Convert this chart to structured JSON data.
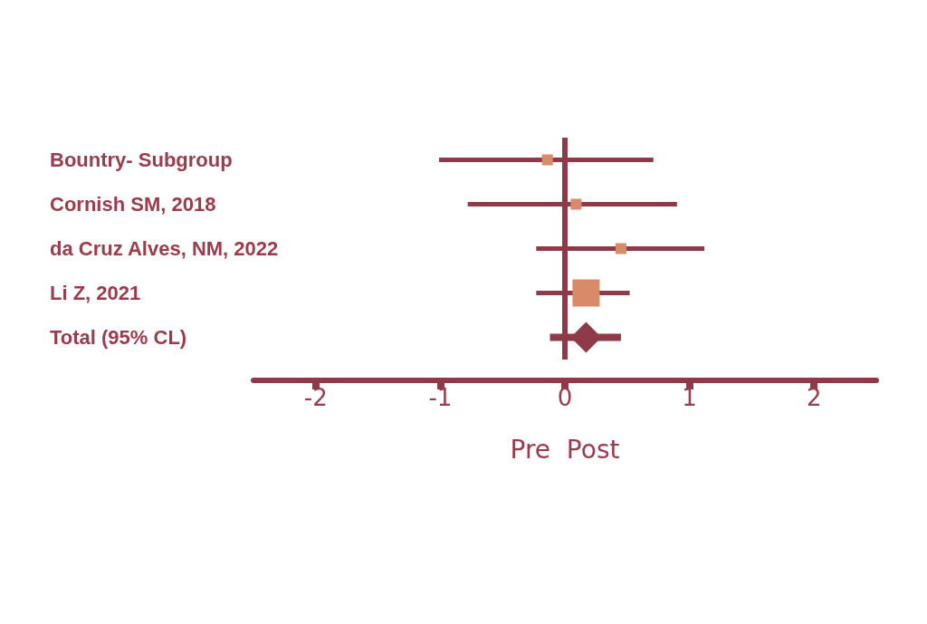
{
  "chart_data": {
    "type": "bubble",
    "orientation": "horizontal",
    "marker": "square",
    "grid": false,
    "categories": [
      "Bountry- Subgroup",
      "Cornish SM, 2018",
      "da Cruz Alves, NM, 2022",
      "Li Z, 2021",
      "Total (95% CL)"
    ],
    "xlabel": "Pre  Post",
    "xlim": [
      -2.5,
      2.5
    ],
    "xticks": [
      -2,
      -1,
      0,
      1,
      2
    ],
    "ref_lines": [
      {
        "axis": "x",
        "value": 0,
        "color": "#8e3a48"
      }
    ],
    "series": [
      {
        "color": "#d98b69",
        "values": [
          -0.14,
          0.09,
          0.45,
          0.17,
          null
        ],
        "sizes": [
          0.16,
          0.16,
          0.16,
          1,
          null
        ],
        "errors": [
          [
            -1.01,
            0.71
          ],
          [
            -0.78,
            0.9
          ],
          [
            -0.23,
            1.12
          ],
          [
            -0.23,
            0.52
          ],
          null
        ]
      },
      {
        "type": "scatter",
        "marker": "diamond",
        "color": "#8e3a48",
        "values": [
          null,
          null,
          null,
          null,
          0.17
        ],
        "errors": [
          null,
          null,
          null,
          null,
          [
            -0.12,
            0.45
          ]
        ]
      }
    ]
  }
}
